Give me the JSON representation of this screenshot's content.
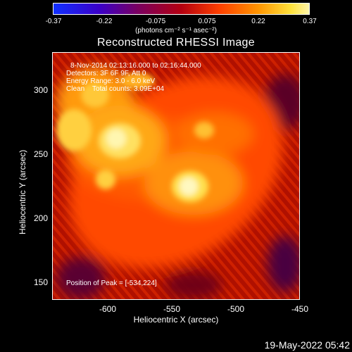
{
  "colorbar": {
    "ticks": [
      "-0.37",
      "-0.22",
      "-0.075",
      "0.075",
      "0.22",
      "0.37"
    ],
    "unit_label": "(photons cm⁻² s⁻¹ asec⁻²)"
  },
  "title": "Reconstructed RHESSI Image",
  "annotations": {
    "line1": "8-Nov-2014 02:13:16.000 to 02:16:44.000",
    "line2": "Detectors: 3F 6F 9F, Att 0",
    "line3": "Energy Range: 3.0 - 6.0 keV",
    "line4": "Clean    Total counts: 3.09E+04",
    "peak": "Position of Peak = [-534,224]"
  },
  "axes": {
    "xlabel": "Heliocentric X (arcsec)",
    "ylabel": "Heliocentric Y (arcsec)",
    "xticks": [
      "-600",
      "-550",
      "-500",
      "-450"
    ],
    "yticks": [
      "300",
      "250",
      "200",
      "150"
    ]
  },
  "footer": {
    "date": "19-May-2022 05:42"
  },
  "colors": {
    "background": "#000000",
    "frame": "#ffffff"
  },
  "icons": {
    "colorbar": "colorbar-gradient"
  }
}
